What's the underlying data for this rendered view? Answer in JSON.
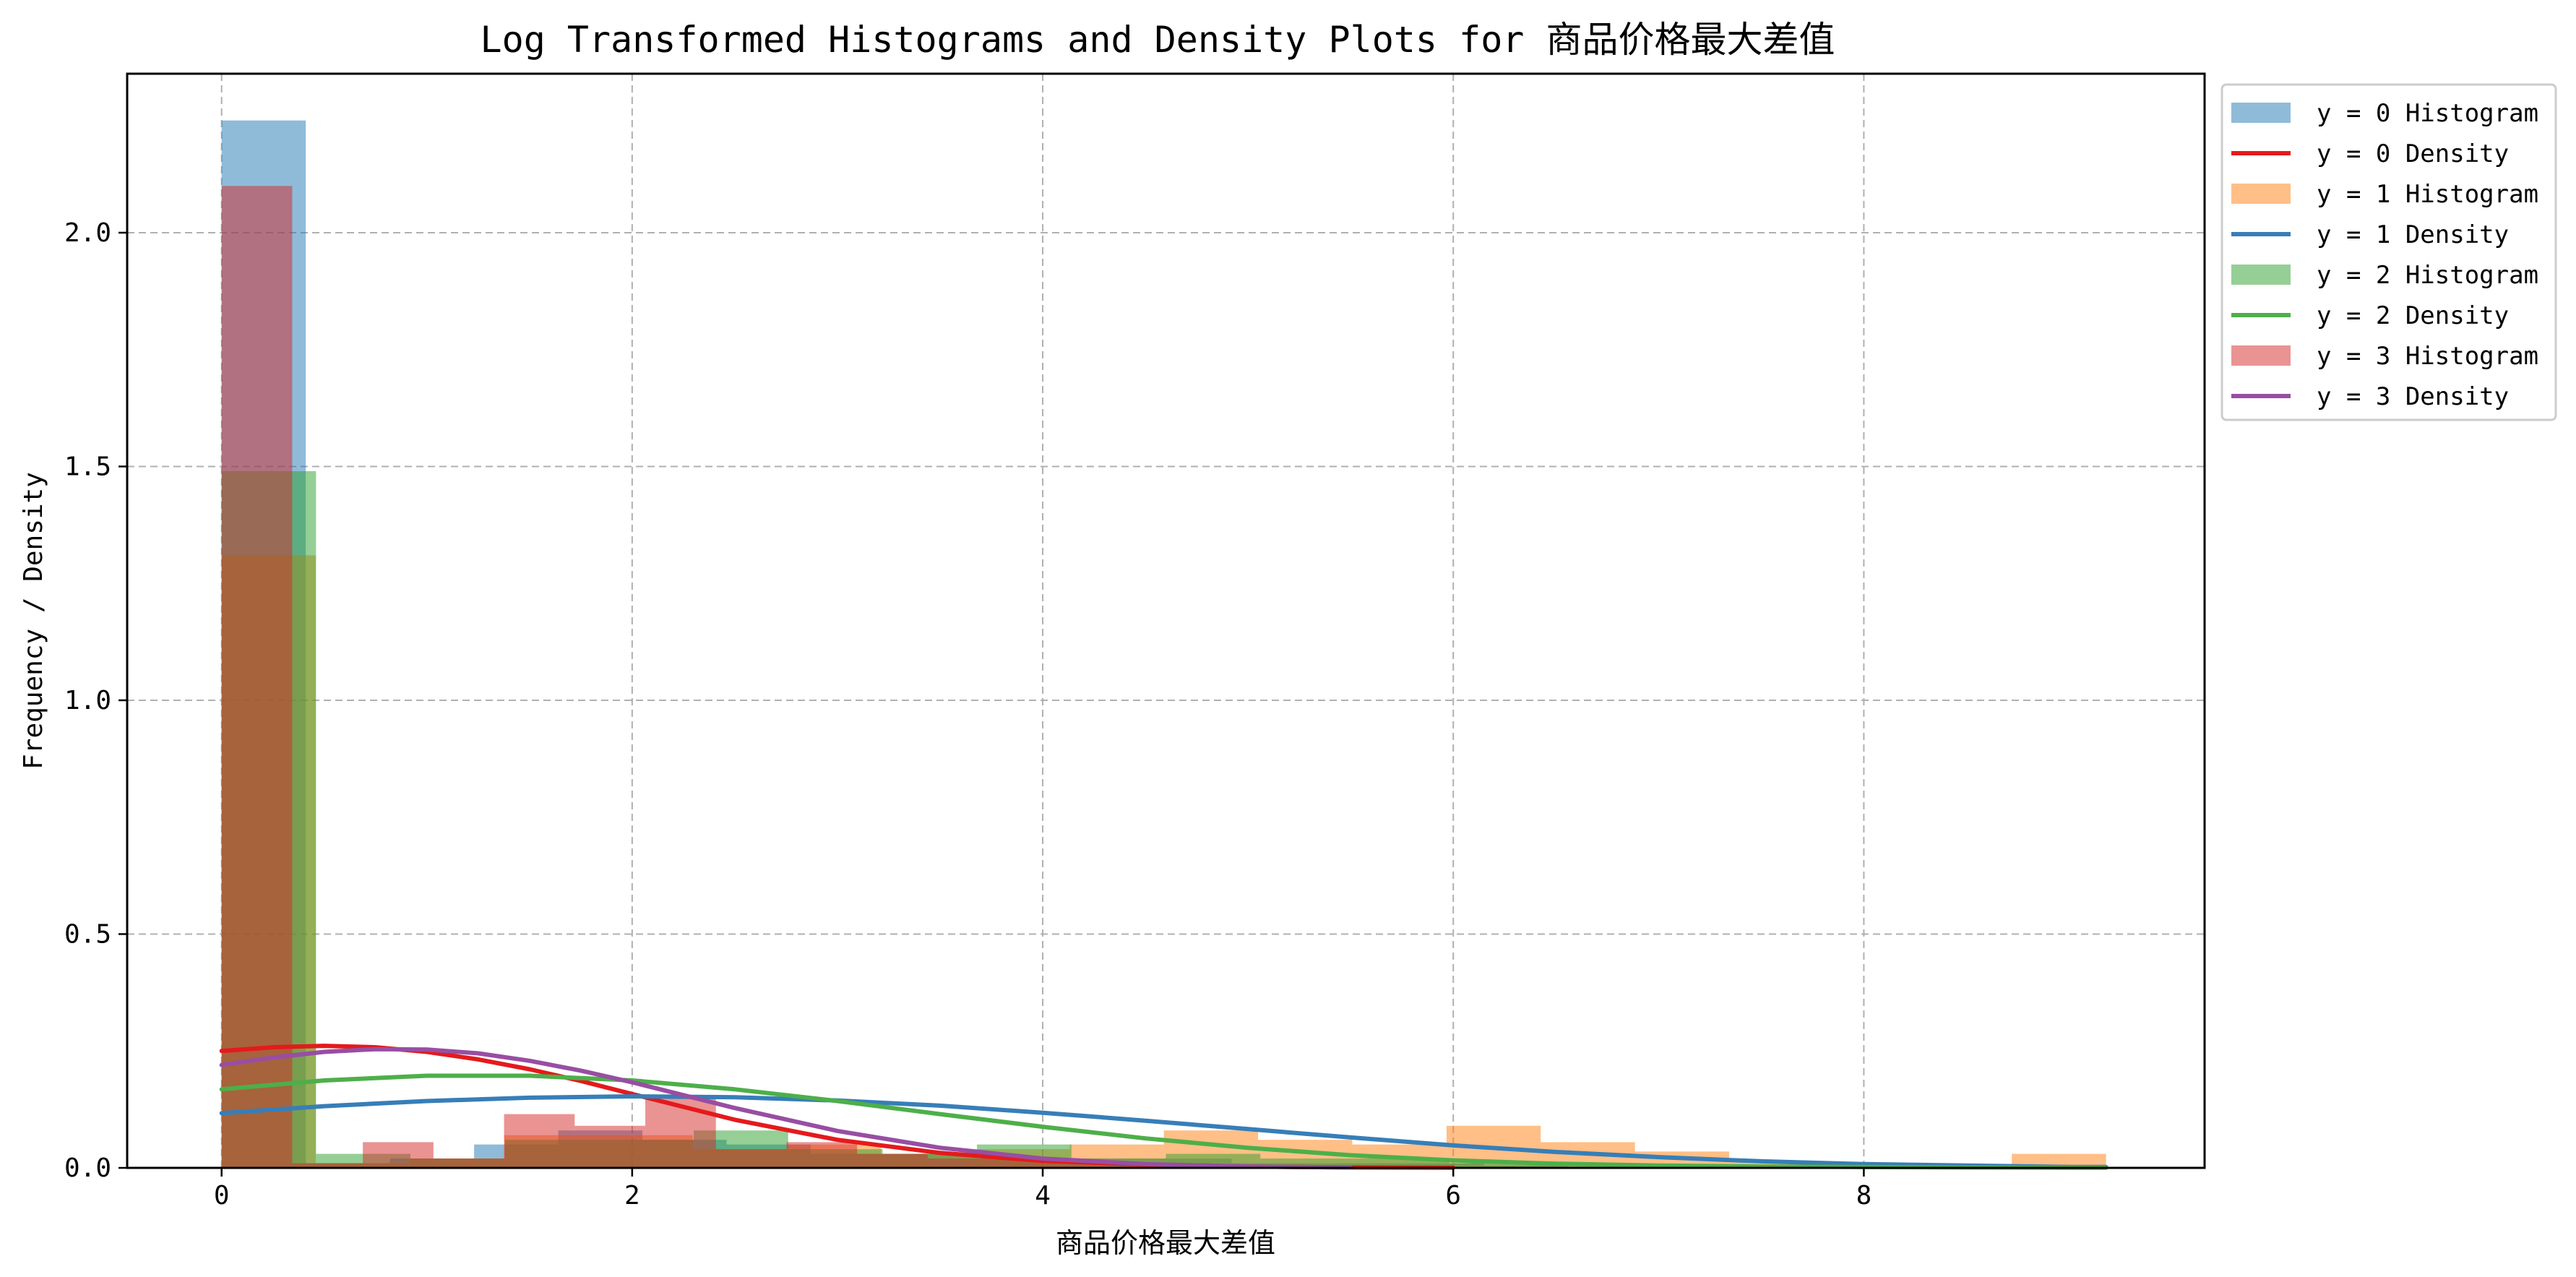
{
  "chart_data": {
    "type": "histogram_density",
    "title": "Log Transformed Histograms and Density Plots for 商品价格最大差值",
    "xlabel": "商品价格最大差值",
    "ylabel": "Frequency / Density",
    "xlim": [
      -0.46,
      9.66
    ],
    "ylim": [
      0,
      2.34
    ],
    "xticks": [
      0,
      2,
      4,
      6,
      8
    ],
    "xtick_labels": [
      "0",
      "2",
      "4",
      "6",
      "8"
    ],
    "yticks": [
      0.0,
      0.5,
      1.0,
      1.5,
      2.0
    ],
    "ytick_labels": [
      "0.0",
      "0.5",
      "1.0",
      "1.5",
      "2.0"
    ],
    "grid": true,
    "legend_placement": "outside-top-right",
    "legend": [
      {
        "label": "y = 0 Histogram",
        "kind": "patch",
        "color": "#1f77b4",
        "opacity": 0.5
      },
      {
        "label": "y = 0 Density",
        "kind": "line",
        "color": "#e41a1c"
      },
      {
        "label": "y = 1 Histogram",
        "kind": "patch",
        "color": "#ff7f0e",
        "opacity": 0.5
      },
      {
        "label": "y = 1 Density",
        "kind": "line",
        "color": "#377eb8"
      },
      {
        "label": "y = 2 Histogram",
        "kind": "patch",
        "color": "#2ca02c",
        "opacity": 0.5
      },
      {
        "label": "y = 2 Density",
        "kind": "line",
        "color": "#4daf4a"
      },
      {
        "label": "y = 3 Histogram",
        "kind": "patch",
        "color": "#d62728",
        "opacity": 0.5
      },
      {
        "label": "y = 3 Density",
        "kind": "line",
        "color": "#984ea3"
      }
    ],
    "histograms": [
      {
        "group": "y = 0",
        "color": "#1f77b4",
        "opacity": 0.5,
        "bins": [
          [
            0.0,
            0.41,
            2.24
          ],
          [
            0.41,
            0.82,
            0.01
          ],
          [
            0.82,
            1.23,
            0.02
          ],
          [
            1.23,
            1.64,
            0.05
          ],
          [
            1.64,
            2.05,
            0.08
          ],
          [
            2.05,
            2.46,
            0.06
          ],
          [
            2.46,
            2.87,
            0.05
          ],
          [
            2.87,
            3.28,
            0.03
          ],
          [
            3.28,
            3.69,
            0.03
          ],
          [
            3.69,
            4.1,
            0.02
          ],
          [
            4.1,
            4.51,
            0.02
          ],
          [
            4.51,
            4.92,
            0.02
          ],
          [
            4.92,
            5.33,
            0.01
          ],
          [
            5.33,
            5.74,
            0.01
          ],
          [
            5.74,
            6.15,
            0.01
          ],
          [
            6.15,
            6.56,
            0.005
          ]
        ]
      },
      {
        "group": "y = 1",
        "color": "#ff7f0e",
        "opacity": 0.5,
        "bins": [
          [
            0.0,
            0.459,
            1.31
          ],
          [
            0.459,
            0.918,
            0.01
          ],
          [
            0.918,
            1.377,
            0.02
          ],
          [
            1.377,
            1.836,
            0.07
          ],
          [
            1.836,
            2.295,
            0.07
          ],
          [
            2.295,
            2.754,
            0.04
          ],
          [
            2.754,
            3.213,
            0.05
          ],
          [
            3.213,
            3.672,
            0.03
          ],
          [
            3.672,
            4.131,
            0.04
          ],
          [
            4.131,
            4.59,
            0.05
          ],
          [
            4.59,
            5.049,
            0.08
          ],
          [
            5.049,
            5.508,
            0.06
          ],
          [
            5.508,
            5.967,
            0.05
          ],
          [
            5.967,
            6.426,
            0.09
          ],
          [
            6.426,
            6.885,
            0.055
          ],
          [
            6.885,
            7.344,
            0.035
          ],
          [
            7.344,
            7.803,
            0.015
          ],
          [
            7.803,
            8.262,
            0.01
          ],
          [
            8.262,
            8.721,
            0.005
          ],
          [
            8.721,
            9.18,
            0.03
          ]
        ]
      },
      {
        "group": "y = 2",
        "color": "#2ca02c",
        "opacity": 0.5,
        "bins": [
          [
            0.0,
            0.46,
            1.49
          ],
          [
            0.46,
            0.92,
            0.03
          ],
          [
            0.92,
            1.38,
            0.02
          ],
          [
            1.38,
            1.84,
            0.06
          ],
          [
            1.84,
            2.3,
            0.06
          ],
          [
            2.3,
            2.76,
            0.08
          ],
          [
            2.76,
            3.22,
            0.04
          ],
          [
            3.22,
            3.68,
            0.03
          ],
          [
            3.68,
            4.14,
            0.05
          ],
          [
            4.14,
            4.6,
            0.02
          ],
          [
            4.6,
            5.06,
            0.03
          ],
          [
            5.06,
            5.52,
            0.02
          ],
          [
            5.52,
            5.98,
            0.02
          ],
          [
            5.98,
            6.44,
            0.01
          ],
          [
            6.44,
            6.9,
            0.01
          ],
          [
            6.9,
            7.36,
            0.005
          ]
        ]
      },
      {
        "group": "y = 3",
        "color": "#d62728",
        "opacity": 0.5,
        "bins": [
          [
            0.0,
            0.344,
            2.1
          ],
          [
            0.344,
            0.688,
            0.01
          ],
          [
            0.688,
            1.032,
            0.055
          ],
          [
            1.032,
            1.376,
            0.02
          ],
          [
            1.376,
            1.72,
            0.115
          ],
          [
            1.72,
            2.064,
            0.09
          ],
          [
            2.064,
            2.408,
            0.15
          ],
          [
            2.408,
            2.752,
            0.04
          ],
          [
            2.752,
            3.096,
            0.055
          ],
          [
            3.096,
            3.44,
            0.03
          ],
          [
            3.44,
            3.784,
            0.02
          ],
          [
            3.784,
            4.128,
            0.02
          ],
          [
            4.128,
            4.472,
            0.01
          ],
          [
            4.472,
            4.816,
            0.01
          ],
          [
            4.816,
            5.16,
            0.005
          ]
        ]
      }
    ],
    "density": [
      {
        "group": "y = 0",
        "color": "#e41a1c",
        "x": [
          0,
          0.25,
          0.5,
          0.75,
          1,
          1.25,
          1.5,
          1.75,
          2,
          2.5,
          3,
          3.5,
          4,
          4.5,
          5,
          5.5,
          6
        ],
        "y": [
          0.25,
          0.258,
          0.261,
          0.258,
          0.248,
          0.232,
          0.211,
          0.186,
          0.158,
          0.103,
          0.06,
          0.032,
          0.015,
          0.007,
          0.003,
          0.001,
          0.0005
        ]
      },
      {
        "group": "y = 1",
        "color": "#377eb8",
        "x": [
          0,
          0.5,
          1,
          1.5,
          2,
          2.5,
          3,
          3.5,
          4,
          4.5,
          5,
          5.5,
          6,
          6.5,
          7,
          7.5,
          8,
          8.5,
          9,
          9.18
        ],
        "y": [
          0.117,
          0.132,
          0.143,
          0.15,
          0.153,
          0.151,
          0.144,
          0.133,
          0.118,
          0.101,
          0.083,
          0.065,
          0.048,
          0.034,
          0.023,
          0.014,
          0.008,
          0.005,
          0.002,
          0.002
        ]
      },
      {
        "group": "y = 2",
        "color": "#4daf4a",
        "x": [
          0,
          0.5,
          1,
          1.5,
          2,
          2.5,
          3,
          3.5,
          4,
          4.5,
          5,
          5.5,
          6,
          6.5,
          7,
          7.5,
          8,
          8.5,
          9,
          9.18
        ],
        "y": [
          0.168,
          0.187,
          0.197,
          0.197,
          0.187,
          0.168,
          0.143,
          0.115,
          0.088,
          0.063,
          0.043,
          0.027,
          0.016,
          0.009,
          0.005,
          0.003,
          0.002,
          0.001,
          0.0005,
          0.0003
        ]
      },
      {
        "group": "y = 3",
        "color": "#984ea3",
        "x": [
          0,
          0.25,
          0.5,
          0.75,
          1,
          1.25,
          1.5,
          1.75,
          2,
          2.5,
          3,
          3.5,
          4,
          4.5,
          5,
          5.5
        ],
        "y": [
          0.22,
          0.236,
          0.248,
          0.254,
          0.253,
          0.245,
          0.229,
          0.208,
          0.183,
          0.128,
          0.079,
          0.043,
          0.02,
          0.008,
          0.003,
          0.001
        ]
      }
    ]
  }
}
